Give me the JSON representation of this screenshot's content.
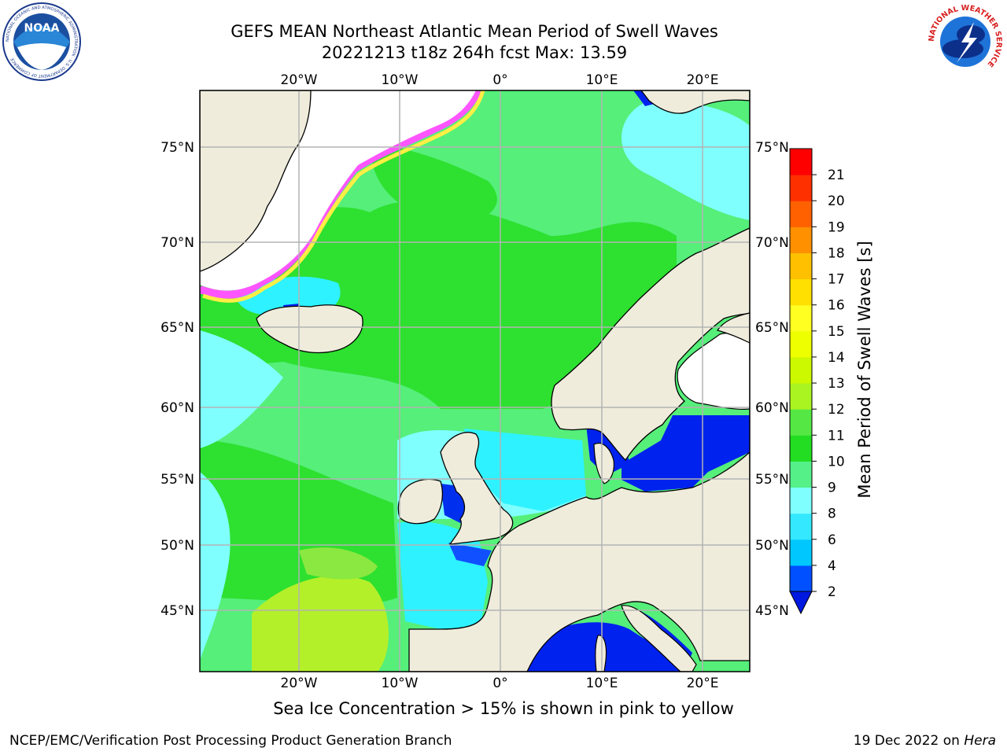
{
  "header": {
    "title_line1": "GEFS MEAN Northeast Atlantic Mean Period of Swell Waves",
    "title_line2": "20221213 t18z 264h fcst   Max: 13.59"
  },
  "map": {
    "lon_labels": [
      "20°W",
      "10°W",
      "0°",
      "10°E",
      "20°E"
    ],
    "lat_labels": [
      "75°N",
      "70°N",
      "65°N",
      "60°N",
      "55°N",
      "50°N",
      "45°N"
    ],
    "colorbar_label": "Mean Period of Swell Waves [s]",
    "colorbar_ticks": [
      "2",
      "4",
      "6",
      "8",
      "9",
      "10",
      "11",
      "12",
      "13",
      "14",
      "15",
      "16",
      "17",
      "18",
      "19",
      "20",
      "21"
    ],
    "colorbar_colors": [
      "#0050ff",
      "#00c8ff",
      "#33e8ff",
      "#80ffff",
      "#55f088",
      "#22dd22",
      "#55e844",
      "#aaf422",
      "#ccf800",
      "#eeff00",
      "#ffff22",
      "#ffe000",
      "#ffc000",
      "#ff9000",
      "#ff6000",
      "#ff3000",
      "#ff0000"
    ],
    "ocean_colors": {
      "light_green": "#55ef7a",
      "green": "#2ee030",
      "cyan": "#2ef2ff",
      "light_cyan": "#80ffff",
      "blue": "#0022ee",
      "land": "#efecdc",
      "ice_pink": "#ff55ff",
      "ice_yellow": "#ffee44"
    }
  },
  "logos": {
    "left_text": "NOAA",
    "left_ring": "NATIONAL OCEANIC AND ATMOSPHERIC ADMINISTRATION · U.S. DEPARTMENT OF COMMERCE",
    "right_ring": "NATIONAL WEATHER SERVICE"
  },
  "footer": {
    "note": "Sea Ice Concentration > 15% is shown in pink to yellow",
    "credit": "NCEP/EMC/Verification Post Processing Product Generation Branch",
    "date": "19 Dec 2022 on ",
    "host": "Hera"
  }
}
